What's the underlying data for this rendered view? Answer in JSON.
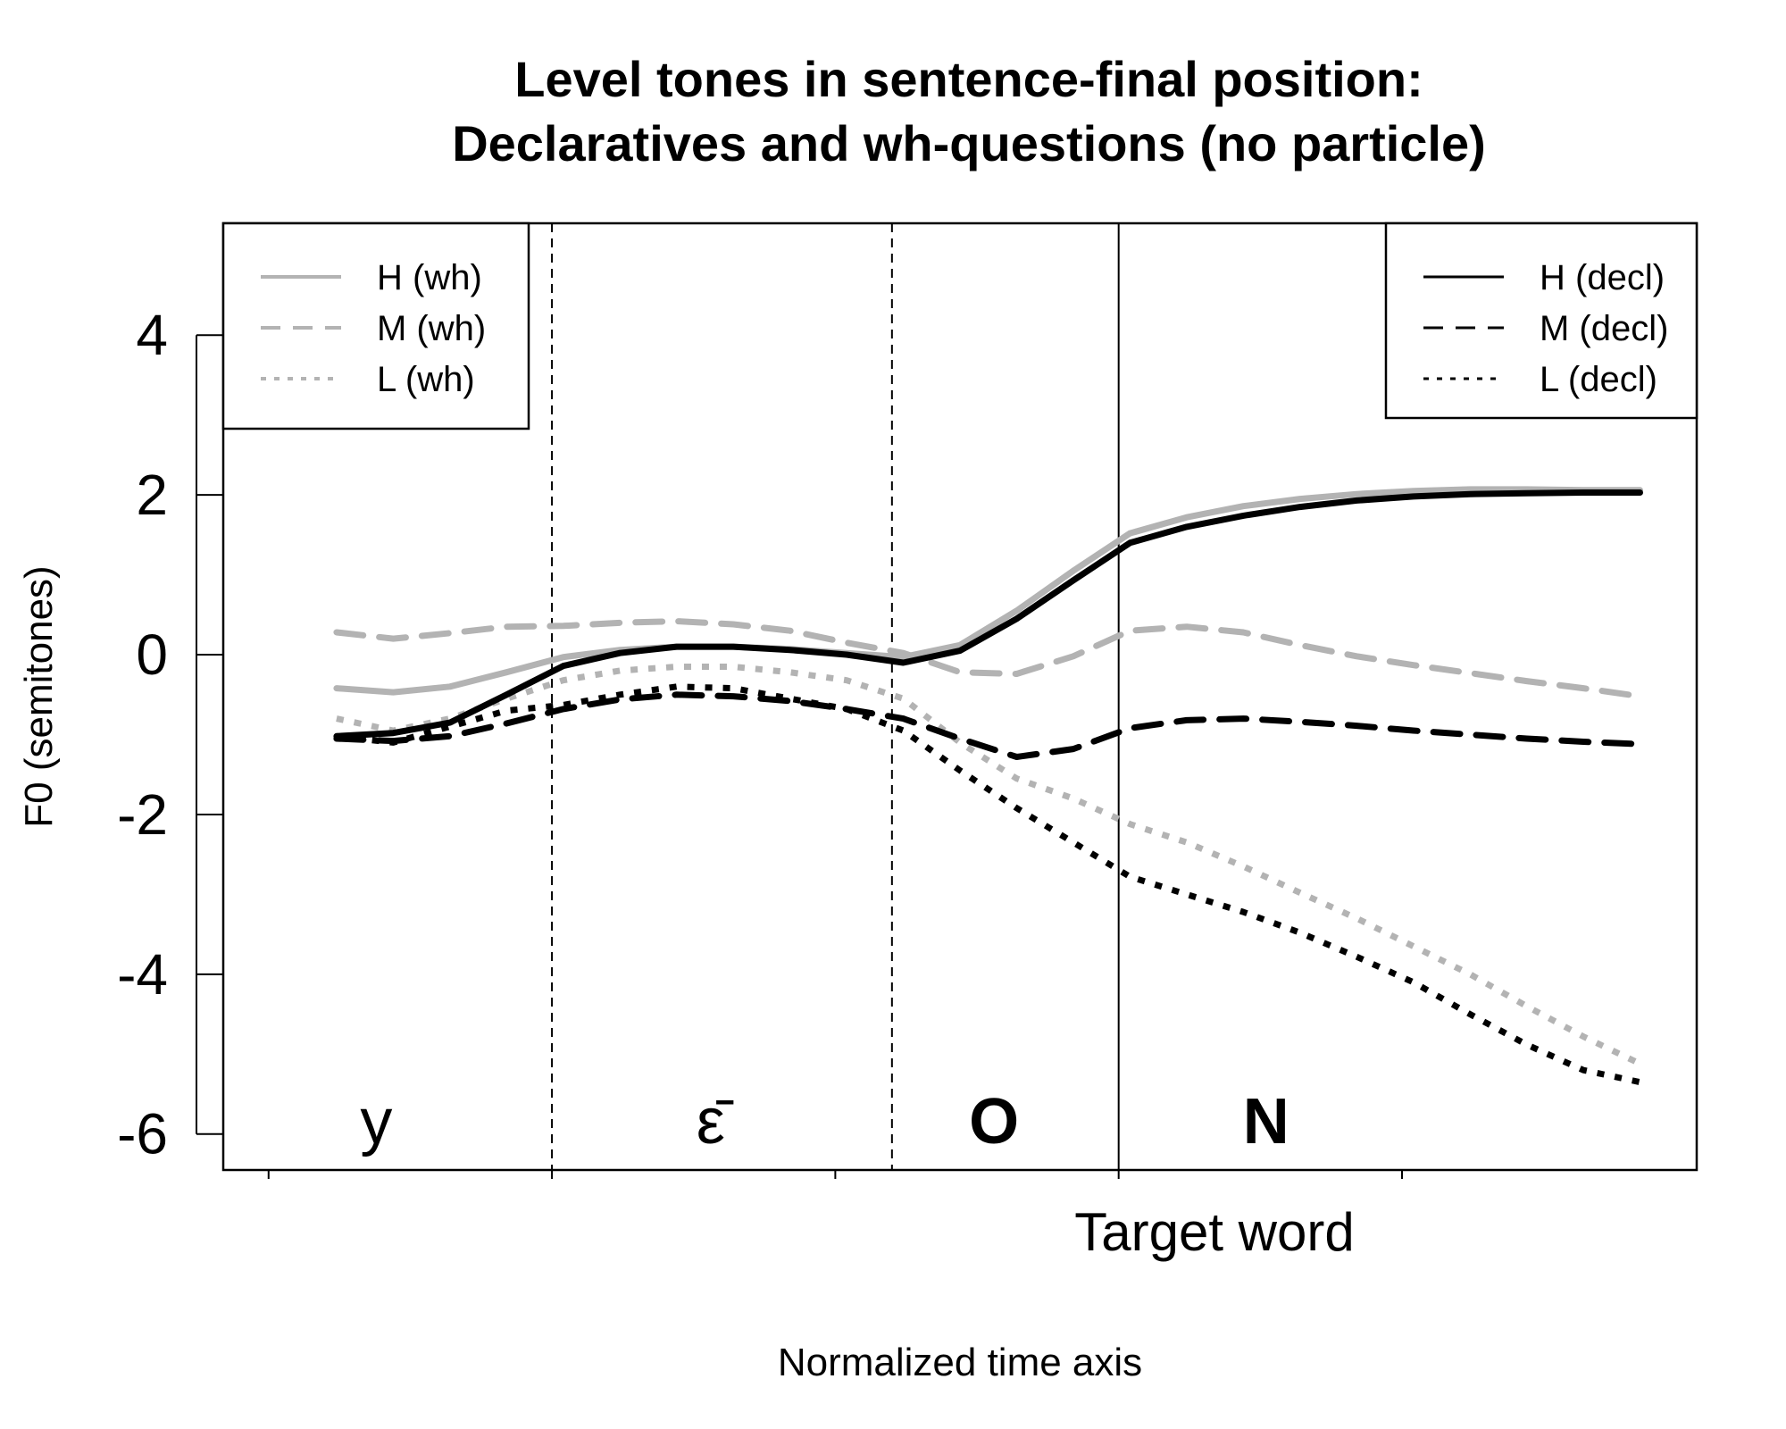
{
  "chart_data": {
    "type": "line",
    "title": "Level tones in sentence-final position:",
    "subtitle": "Declaratives and wh-questions (no particle)",
    "xlabel": "Normalized time axis",
    "ylabel": "F0 (semitones)",
    "target_label": "Target word",
    "ylim": [
      -6.45,
      5.4
    ],
    "xlim": [
      0.4,
      26.4
    ],
    "yticks": [
      -6,
      -4,
      -2,
      0,
      2,
      4
    ],
    "ytick_labels": [
      "-6",
      "-4",
      "-2",
      "0",
      "2",
      "4"
    ],
    "xticks": [
      1.2,
      6.2,
      11.2,
      16.2,
      21.2
    ],
    "grid": false,
    "segments": [
      {
        "label": "y",
        "x": 3.1,
        "bold": false
      },
      {
        "label": "ε̄",
        "x": 9.0,
        "bold": false
      },
      {
        "label": "O",
        "x": 14.0,
        "bold": true
      },
      {
        "label": "N",
        "x": 18.8,
        "bold": true
      }
    ],
    "boundaries": [
      {
        "x": 6.2,
        "style": "dashed"
      },
      {
        "x": 12.2,
        "style": "dashed"
      },
      {
        "x": 16.2,
        "style": "solid"
      }
    ],
    "x": [
      2.4,
      3.4,
      4.4,
      5.4,
      6.4,
      7.4,
      8.4,
      9.4,
      10.4,
      11.4,
      12.4,
      13.4,
      14.4,
      15.4,
      16.4,
      17.4,
      18.4,
      19.4,
      20.4,
      21.4,
      22.4,
      23.4,
      24.4,
      25.4
    ],
    "series": [
      {
        "name": "H (wh)",
        "color": "#b3b3b3",
        "dash": "solid",
        "values": [
          -0.42,
          -0.47,
          -0.4,
          -0.22,
          -0.03,
          0.06,
          0.1,
          0.1,
          0.07,
          0.02,
          -0.03,
          0.12,
          0.55,
          1.05,
          1.52,
          1.72,
          1.86,
          1.95,
          2.01,
          2.05,
          2.07,
          2.07,
          2.06,
          2.06
        ]
      },
      {
        "name": "M (wh)",
        "color": "#b3b3b3",
        "dash": "long",
        "values": [
          0.28,
          0.2,
          0.27,
          0.35,
          0.36,
          0.4,
          0.42,
          0.38,
          0.3,
          0.15,
          0.02,
          -0.22,
          -0.24,
          -0.02,
          0.3,
          0.35,
          0.28,
          0.12,
          -0.02,
          -0.13,
          -0.23,
          -0.33,
          -0.42,
          -0.52
        ]
      },
      {
        "name": "L (wh)",
        "color": "#b3b3b3",
        "dash": "dotted",
        "values": [
          -0.8,
          -0.95,
          -0.8,
          -0.55,
          -0.32,
          -0.2,
          -0.15,
          -0.15,
          -0.22,
          -0.32,
          -0.55,
          -1.1,
          -1.55,
          -1.8,
          -2.12,
          -2.35,
          -2.65,
          -2.98,
          -3.3,
          -3.65,
          -4.0,
          -4.4,
          -4.78,
          -5.12
        ]
      },
      {
        "name": "H (decl)",
        "color": "#000000",
        "dash": "solid",
        "values": [
          -1.02,
          -0.98,
          -0.85,
          -0.5,
          -0.14,
          0.02,
          0.1,
          0.1,
          0.06,
          0.0,
          -0.1,
          0.05,
          0.45,
          0.93,
          1.4,
          1.6,
          1.74,
          1.85,
          1.93,
          1.98,
          2.01,
          2.02,
          2.03,
          2.03
        ]
      },
      {
        "name": "M (decl)",
        "color": "#000000",
        "dash": "long",
        "values": [
          -1.05,
          -1.08,
          -1.02,
          -0.86,
          -0.68,
          -0.56,
          -0.5,
          -0.52,
          -0.58,
          -0.68,
          -0.8,
          -1.05,
          -1.28,
          -1.18,
          -0.92,
          -0.82,
          -0.8,
          -0.84,
          -0.89,
          -0.95,
          -1.0,
          -1.05,
          -1.09,
          -1.12
        ]
      },
      {
        "name": "L (decl)",
        "color": "#000000",
        "dash": "dotted",
        "values": [
          -1.02,
          -1.1,
          -0.9,
          -0.7,
          -0.63,
          -0.5,
          -0.4,
          -0.42,
          -0.55,
          -0.68,
          -0.95,
          -1.45,
          -1.92,
          -2.35,
          -2.78,
          -3.0,
          -3.22,
          -3.48,
          -3.78,
          -4.1,
          -4.5,
          -4.88,
          -5.2,
          -5.35
        ]
      }
    ],
    "legends": [
      {
        "position": "top-left",
        "entries": [
          "H (wh)",
          "M (wh)",
          "L (wh)"
        ]
      },
      {
        "position": "top-right",
        "entries": [
          "H (decl)",
          "M (decl)",
          "L (decl)"
        ]
      }
    ]
  }
}
